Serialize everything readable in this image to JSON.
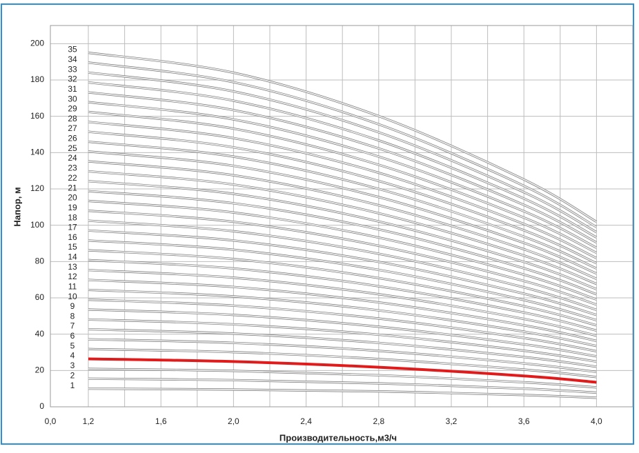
{
  "chart_data": {
    "type": "line",
    "xlabel": "Производительность,м3/ч",
    "ylabel": "Напор, м",
    "x": [
      1.2,
      2.0,
      2.8,
      3.6,
      4.0
    ],
    "xlim": [
      0,
      4.2
    ],
    "xticks": [
      {
        "value": 0,
        "label": "0,0"
      },
      {
        "value": 1.2,
        "label": "1,2"
      },
      {
        "value": 1.6,
        "label": "1,6"
      },
      {
        "value": 2.0,
        "label": "2,0"
      },
      {
        "value": 2.4,
        "label": "2,4"
      },
      {
        "value": 2.8,
        "label": "2,8"
      },
      {
        "value": 3.2,
        "label": "3,2"
      },
      {
        "value": 3.6,
        "label": "3,6"
      },
      {
        "value": 4.0,
        "label": "4,0"
      }
    ],
    "ylim": [
      0,
      210
    ],
    "yticks": [
      0,
      20,
      40,
      60,
      80,
      100,
      120,
      140,
      160,
      180,
      200
    ],
    "grid": true,
    "series": [
      {
        "name": "1",
        "color": "#b0b0b0",
        "values": [
          10.0,
          9.5,
          8.5,
          6.5,
          5.0
        ]
      },
      {
        "name": "2",
        "color": "#b0b0b0",
        "values": [
          15.5,
          14.7,
          12.9,
          10.0,
          7.8
        ]
      },
      {
        "name": "3",
        "color": "#b0b0b0",
        "values": [
          20.9,
          19.8,
          17.4,
          13.5,
          10.7
        ]
      },
      {
        "name": "4",
        "color": "#e01b1b",
        "values": [
          26.4,
          24.9,
          21.8,
          17.0,
          13.5
        ]
      },
      {
        "name": "5",
        "color": "#b0b0b0",
        "values": [
          31.8,
          30.1,
          26.3,
          20.5,
          16.4
        ]
      },
      {
        "name": "6",
        "color": "#b0b0b0",
        "values": [
          37.2,
          35.2,
          30.8,
          23.9,
          19.2
        ]
      },
      {
        "name": "7",
        "color": "#b0b0b0",
        "values": [
          42.7,
          40.3,
          35.2,
          27.4,
          22.1
        ]
      },
      {
        "name": "8",
        "color": "#b0b0b0",
        "values": [
          48.1,
          45.4,
          39.7,
          30.9,
          24.9
        ]
      },
      {
        "name": "9",
        "color": "#b0b0b0",
        "values": [
          53.6,
          50.6,
          44.1,
          34.4,
          27.8
        ]
      },
      {
        "name": "10",
        "color": "#b0b0b0",
        "values": [
          59.0,
          55.7,
          48.6,
          37.9,
          30.6
        ]
      },
      {
        "name": "11",
        "color": "#b0b0b0",
        "values": [
          64.4,
          60.8,
          53.1,
          41.4,
          33.5
        ]
      },
      {
        "name": "12",
        "color": "#b0b0b0",
        "values": [
          69.9,
          66.0,
          57.5,
          44.9,
          36.3
        ]
      },
      {
        "name": "13",
        "color": "#b0b0b0",
        "values": [
          75.3,
          71.1,
          62.0,
          48.4,
          39.2
        ]
      },
      {
        "name": "14",
        "color": "#b0b0b0",
        "values": [
          80.8,
          76.2,
          66.4,
          51.9,
          42.0
        ]
      },
      {
        "name": "15",
        "color": "#b0b0b0",
        "values": [
          86.2,
          81.4,
          70.9,
          55.4,
          44.9
        ]
      },
      {
        "name": "16",
        "color": "#b0b0b0",
        "values": [
          91.6,
          86.5,
          75.4,
          58.8,
          47.7
        ]
      },
      {
        "name": "17",
        "color": "#b0b0b0",
        "values": [
          97.1,
          91.6,
          79.8,
          62.3,
          50.6
        ]
      },
      {
        "name": "18",
        "color": "#b0b0b0",
        "values": [
          102.5,
          96.7,
          84.3,
          65.8,
          53.4
        ]
      },
      {
        "name": "19",
        "color": "#b0b0b0",
        "values": [
          108.0,
          101.9,
          88.7,
          69.3,
          56.3
        ]
      },
      {
        "name": "20",
        "color": "#b0b0b0",
        "values": [
          113.4,
          107.0,
          93.2,
          72.8,
          59.1
        ]
      },
      {
        "name": "21",
        "color": "#b0b0b0",
        "values": [
          118.8,
          112.1,
          97.7,
          76.3,
          62.0
        ]
      },
      {
        "name": "22",
        "color": "#b0b0b0",
        "values": [
          124.3,
          117.3,
          102.1,
          79.8,
          64.8
        ]
      },
      {
        "name": "23",
        "color": "#b0b0b0",
        "values": [
          129.7,
          122.4,
          106.6,
          83.3,
          67.7
        ]
      },
      {
        "name": "24",
        "color": "#b0b0b0",
        "values": [
          135.2,
          127.5,
          111.0,
          86.8,
          70.5
        ]
      },
      {
        "name": "25",
        "color": "#b0b0b0",
        "values": [
          140.6,
          132.7,
          115.5,
          90.3,
          73.4
        ]
      },
      {
        "name": "26",
        "color": "#b0b0b0",
        "values": [
          146.0,
          137.8,
          120.0,
          93.7,
          76.2
        ]
      },
      {
        "name": "27",
        "color": "#b0b0b0",
        "values": [
          151.5,
          142.9,
          124.4,
          97.2,
          79.1
        ]
      },
      {
        "name": "28",
        "color": "#b0b0b0",
        "values": [
          156.9,
          148.0,
          128.9,
          100.7,
          81.9
        ]
      },
      {
        "name": "29",
        "color": "#b0b0b0",
        "values": [
          162.4,
          153.2,
          133.3,
          104.2,
          84.8
        ]
      },
      {
        "name": "30",
        "color": "#b0b0b0",
        "values": [
          167.8,
          158.3,
          137.8,
          107.7,
          87.6
        ]
      },
      {
        "name": "31",
        "color": "#b0b0b0",
        "values": [
          173.2,
          163.4,
          142.3,
          111.2,
          90.5
        ]
      },
      {
        "name": "32",
        "color": "#b0b0b0",
        "values": [
          178.7,
          168.6,
          146.7,
          114.7,
          93.3
        ]
      },
      {
        "name": "33",
        "color": "#b0b0b0",
        "values": [
          184.1,
          173.7,
          151.2,
          118.2,
          96.2
        ]
      },
      {
        "name": "34",
        "color": "#b0b0b0",
        "values": [
          189.6,
          178.8,
          155.6,
          121.7,
          99.0
        ]
      },
      {
        "name": "35",
        "color": "#b0b0b0",
        "values": [
          195.0,
          184.0,
          160.1,
          125.2,
          101.9
        ]
      }
    ]
  }
}
